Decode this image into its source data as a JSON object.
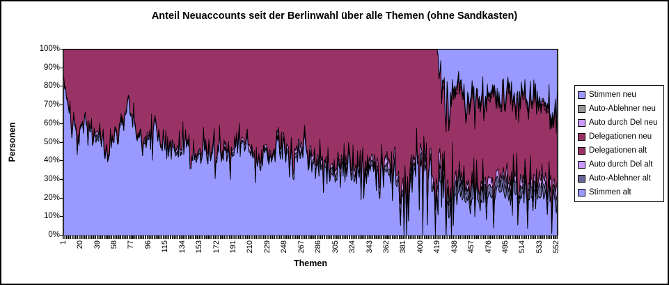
{
  "chart_data": {
    "type": "area",
    "stacked": "percent",
    "title": "Anteil Neuaccounts seit der Berlinwahl über alle Themen (ohne Sandkasten)",
    "xlabel": "Themen",
    "ylabel": "Personen",
    "ylim": [
      0,
      100
    ],
    "grid": false,
    "legend_position": "right",
    "y_tick_labels": [
      "100%",
      "90%",
      "80%",
      "70%",
      "60%",
      "50%",
      "40%",
      "30%",
      "20%",
      "10%",
      "0%"
    ],
    "x_tick_labels": [
      "1",
      "20",
      "39",
      "58",
      "77",
      "96",
      "115",
      "134",
      "153",
      "172",
      "191",
      "210",
      "229",
      "248",
      "267",
      "286",
      "305",
      "324",
      "343",
      "362",
      "381",
      "400",
      "419",
      "438",
      "457",
      "476",
      "495",
      "514",
      "533",
      "552"
    ],
    "x_range": [
      1,
      552
    ],
    "legend": [
      {
        "label": "Stimmen neu",
        "color": "#9999FF"
      },
      {
        "label": "Auto-Ablehner neu",
        "color": "#969696"
      },
      {
        "label": "Auto durch Del neu",
        "color": "#CC99FF"
      },
      {
        "label": "Delegationen neu",
        "color": "#993366"
      },
      {
        "label": "Delegationen alt",
        "color": "#993366"
      },
      {
        "label": "Auto durch Del alt",
        "color": "#CC99FF"
      },
      {
        "label": "Auto-Ablehner alt",
        "color": "#666699"
      },
      {
        "label": "Stimmen alt",
        "color": "#9999FF"
      }
    ],
    "sampling": {
      "start": 1,
      "step": 8,
      "points": 70
    },
    "noise": {
      "seed": 42,
      "shape": 2.8,
      "zones": [
        [
          370,
          394,
          1.6
        ],
        [
          395,
          435,
          2.2
        ]
      ]
    },
    "stack_order": "bottom-to-top",
    "series": [
      {
        "name": "Stimmen alt",
        "color": "#9999FF",
        "noise_amp": 7,
        "values": [
          85,
          60,
          56,
          62,
          50,
          55,
          38,
          52,
          60,
          68,
          52,
          48,
          55,
          58,
          48,
          44,
          42,
          50,
          40,
          44,
          46,
          42,
          46,
          48,
          44,
          50,
          44,
          40,
          46,
          42,
          48,
          44,
          40,
          44,
          46,
          40,
          38,
          35,
          30,
          34,
          36,
          30,
          36,
          38,
          34,
          36,
          30,
          26,
          20,
          36,
          42,
          28,
          26,
          22,
          20,
          24,
          20,
          22,
          18,
          22,
          20,
          24,
          20,
          22,
          18,
          22,
          20,
          24,
          20,
          18
        ]
      },
      {
        "name": "Auto-Ablehner alt",
        "color": "#666699",
        "noise_amp": 1.3,
        "values": [
          0.5,
          1,
          0.5,
          1,
          2,
          1,
          0.5,
          1,
          1,
          0.5,
          1,
          2,
          1,
          0.5,
          1,
          1.5,
          1,
          0.5,
          1,
          2,
          1.5,
          1,
          0.5,
          1,
          1.5,
          2,
          1,
          0.5,
          1,
          2,
          1.5,
          1,
          2,
          1.5,
          1,
          2,
          2.5,
          2,
          3,
          2,
          2.5,
          3,
          2,
          2.5,
          2,
          3,
          2.5,
          2,
          3,
          2.5,
          2,
          3,
          3,
          6,
          5,
          6,
          5,
          6,
          5,
          6,
          5,
          6,
          5,
          6,
          5,
          6,
          5,
          6,
          5,
          5
        ]
      },
      {
        "name": "Auto durch Del alt",
        "color": "#CC99FF",
        "noise_amp": 1.3,
        "values": [
          0.5,
          0.5,
          1,
          0.5,
          1,
          1.5,
          1,
          0.5,
          1,
          1,
          0.5,
          1,
          1.5,
          1,
          0.5,
          1,
          2,
          1,
          0.5,
          1,
          2,
          1.5,
          1,
          2,
          1,
          1.5,
          2,
          1,
          2,
          1.5,
          2,
          2.5,
          2,
          3,
          2,
          2.5,
          3,
          2,
          2.5,
          3,
          2,
          3,
          3.5,
          3,
          2.5,
          3,
          3.5,
          3,
          2.5,
          3,
          3.5,
          3,
          3.5,
          4,
          3.5,
          4,
          3.5,
          4,
          3.5,
          4,
          3.5,
          4,
          3.5,
          4,
          3.5,
          4,
          3.5,
          4,
          3.5,
          3.5
        ]
      },
      {
        "name": "Delegationen alt",
        "color": "#993366",
        "noise_amp": 5,
        "values": [
          14,
          38.5,
          42.5,
          36.5,
          47,
          42.5,
          60.5,
          46.5,
          38,
          30.5,
          46.5,
          49,
          42.5,
          40.5,
          50.5,
          53.5,
          55,
          48.5,
          58.5,
          53,
          50.5,
          55.5,
          52.5,
          49,
          53.5,
          46.5,
          53,
          58.5,
          51,
          54.5,
          48.5,
          52.5,
          56,
          51.5,
          51,
          55.5,
          56.5,
          61,
          64.5,
          61,
          59.5,
          64,
          58.5,
          56.5,
          61.5,
          58,
          64,
          69,
          74.5,
          58.5,
          52.5,
          66,
          67.5,
          46,
          43.5,
          42,
          41.5,
          42,
          41.5,
          40,
          46.5,
          36,
          45.5,
          36,
          45.5,
          42,
          39.5,
          38,
          37.5,
          41.5
        ]
      },
      {
        "name": "Delegationen neu",
        "color": "#993366",
        "noise_amp": 0.6,
        "values": [
          0,
          0,
          0,
          0,
          0,
          0,
          0,
          0,
          0,
          0,
          0,
          0,
          0,
          0,
          0,
          0,
          0,
          0,
          0,
          0,
          0,
          0,
          0,
          0,
          0,
          0,
          0,
          0,
          0,
          0,
          0,
          0,
          0,
          0,
          0,
          0,
          0,
          0,
          0,
          0,
          0,
          0,
          0,
          0,
          0,
          0,
          0,
          0,
          0,
          0,
          0,
          0,
          0,
          2,
          2,
          2,
          2,
          2,
          2,
          2,
          2,
          2,
          2,
          2,
          2,
          2,
          2,
          2,
          2,
          2
        ]
      },
      {
        "name": "Auto durch Del neu",
        "color": "#CC99FF",
        "noise_amp": 0.5,
        "values": [
          0,
          0,
          0,
          0,
          0,
          0,
          0,
          0,
          0,
          0,
          0,
          0,
          0,
          0,
          0,
          0,
          0,
          0,
          0,
          0,
          0,
          0,
          0,
          0,
          0,
          0,
          0,
          0,
          0,
          0,
          0,
          0,
          0,
          0,
          0,
          0,
          0,
          0,
          0,
          0,
          0,
          0,
          0,
          0,
          0,
          0,
          0,
          0,
          0,
          0,
          0,
          0,
          0,
          0.7,
          0.7,
          0.7,
          0.7,
          0.7,
          0.7,
          0.7,
          0.7,
          0.7,
          0.7,
          0.7,
          0.7,
          0.7,
          0.7,
          0.7,
          0.7,
          0.7
        ]
      },
      {
        "name": "Auto-Ablehner neu",
        "color": "#969696",
        "noise_amp": 0.5,
        "values": [
          0,
          0,
          0,
          0,
          0,
          0,
          0,
          0,
          0,
          0,
          0,
          0,
          0,
          0,
          0,
          0,
          0,
          0,
          0,
          0,
          0,
          0,
          0,
          0,
          0,
          0,
          0,
          0,
          0,
          0,
          0,
          0,
          0,
          0,
          0,
          0,
          0,
          0,
          0,
          0,
          0,
          0,
          0,
          0,
          0,
          0,
          0,
          0,
          0,
          0,
          0,
          0,
          0,
          0.7,
          0.7,
          0.7,
          0.7,
          0.7,
          0.7,
          0.7,
          0.7,
          0.7,
          0.7,
          0.7,
          0.7,
          0.7,
          0.7,
          0.7,
          0.7,
          0.7
        ]
      },
      {
        "name": "Stimmen neu",
        "color": "#9999FF",
        "noise_amp": 6,
        "values": [
          0,
          0,
          0,
          0,
          0,
          0,
          0,
          0,
          0,
          0,
          0,
          0,
          0,
          0,
          0,
          0,
          0,
          0,
          0,
          0,
          0,
          0,
          0,
          0,
          0,
          0,
          0,
          0,
          0,
          0,
          0,
          0,
          0,
          0,
          0,
          0,
          0,
          0,
          0,
          0,
          0,
          0,
          0,
          0,
          0,
          0,
          0,
          0,
          0,
          0,
          0,
          0,
          0,
          18.6,
          24.6,
          20.6,
          26.6,
          22.6,
          28.6,
          24.6,
          21.6,
          26.6,
          22.6,
          28.6,
          24.6,
          22.6,
          28.6,
          24.6,
          30.6,
          28.6
        ]
      }
    ]
  }
}
